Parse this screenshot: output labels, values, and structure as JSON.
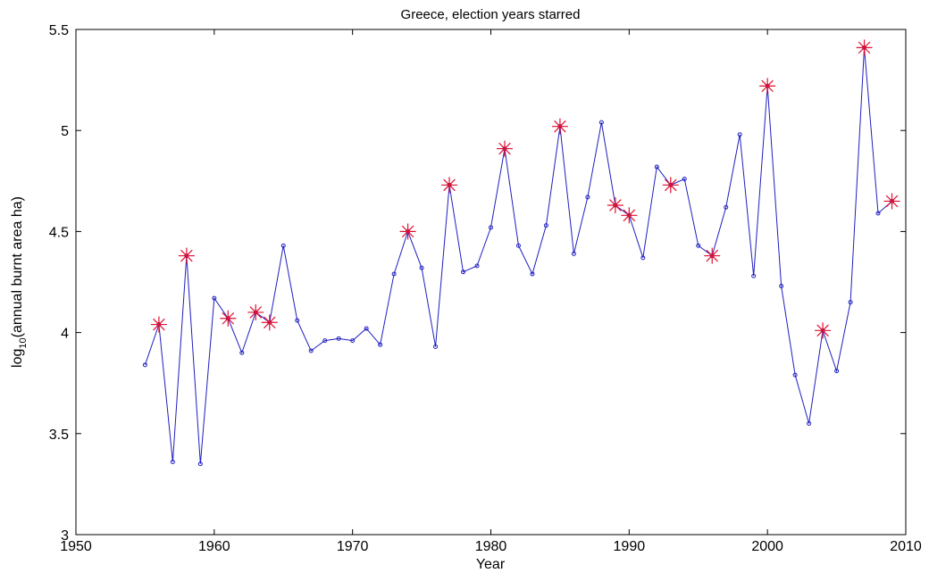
{
  "chart_data": {
    "type": "line",
    "title": "Greece, election years starred",
    "xlabel": "Year",
    "ylabel": {
      "base": "log",
      "subscript": "10",
      "rest": "(annual burnt area ha)"
    },
    "xlim": [
      1950,
      2010
    ],
    "ylim": [
      3,
      5.5
    ],
    "xticks": [
      1950,
      1960,
      1970,
      1980,
      1990,
      2000,
      2010
    ],
    "yticks": [
      "3",
      "3.5",
      "4",
      "4.5",
      "5",
      "5.5"
    ],
    "grid": false,
    "series": [
      {
        "line_color": "#1f1fbf",
        "marker": "circle",
        "x": [
          1955,
          1956,
          1957,
          1958,
          1959,
          1960,
          1961,
          1962,
          1963,
          1964,
          1965,
          1966,
          1967,
          1968,
          1969,
          1970,
          1971,
          1972,
          1973,
          1974,
          1975,
          1976,
          1977,
          1978,
          1979,
          1980,
          1981,
          1982,
          1983,
          1984,
          1985,
          1986,
          1987,
          1988,
          1989,
          1990,
          1991,
          1992,
          1993,
          1994,
          1995,
          1996,
          1997,
          1998,
          1999,
          2000,
          2001,
          2002,
          2003,
          2004,
          2005,
          2006,
          2007,
          2008,
          2009
        ],
        "y": [
          3.84,
          4.04,
          3.36,
          4.38,
          3.35,
          4.17,
          4.07,
          3.9,
          4.1,
          4.05,
          4.43,
          4.06,
          3.91,
          3.96,
          3.97,
          3.96,
          4.02,
          3.94,
          4.29,
          4.5,
          4.32,
          3.93,
          4.73,
          4.3,
          4.33,
          4.52,
          4.91,
          4.43,
          4.29,
          4.53,
          5.02,
          4.39,
          4.67,
          5.04,
          4.63,
          4.58,
          4.37,
          4.82,
          4.73,
          4.76,
          4.43,
          4.38,
          4.62,
          4.98,
          4.28,
          5.22,
          4.23,
          3.79,
          3.55,
          4.01,
          3.81,
          4.15,
          5.41,
          4.59,
          4.65
        ]
      }
    ],
    "starred": {
      "marker_color": "#e0102f",
      "x": [
        1956,
        1958,
        1961,
        1963,
        1964,
        1974,
        1977,
        1981,
        1985,
        1989,
        1990,
        1993,
        1996,
        2000,
        2004,
        2007,
        2009
      ]
    }
  }
}
